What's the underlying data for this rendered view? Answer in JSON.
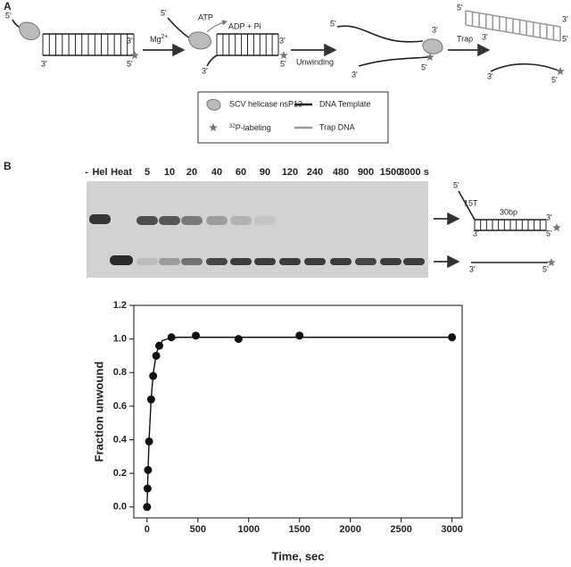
{
  "panel_a": {
    "label": "A",
    "ends": [
      "5'",
      "3'",
      "3'",
      "5'",
      "5'",
      "3'",
      "3'",
      "5'",
      "5'",
      "3'",
      "3'",
      "5'",
      "5'",
      "3'",
      "3'",
      "5'",
      "3'",
      "5'"
    ],
    "mg": {
      "text": "Mg",
      "sup": "2+"
    },
    "atp": "ATP",
    "adp": "ADP + Pi",
    "unwinding": "Unwinding",
    "trap": "Trap",
    "legend": {
      "helicase": "SCV helicase nsP13",
      "template": "DNA Template",
      "label": {
        "sup": "32",
        "text": "P-labeling"
      },
      "trap_dna": "Trap DNA"
    }
  },
  "panel_b": {
    "label": "B",
    "lanes": [
      "-",
      "Hel",
      "Heat",
      "5",
      "10",
      "20",
      "40",
      "60",
      "90",
      "120",
      "240",
      "480",
      "900",
      "1500",
      "3000 s"
    ],
    "ends": [
      "5'",
      "3'",
      "3'",
      "5'",
      "3'",
      "5'"
    ],
    "loop": "15T",
    "duplex": "30bp"
  },
  "chart_data": {
    "type": "scatter",
    "xlabel": "Time, sec",
    "ylabel": "Fraction unwound",
    "xlim": [
      -130,
      3100
    ],
    "xticks": [
      0,
      500,
      1000,
      1500,
      2000,
      2500,
      3000
    ],
    "ylim": [
      -0.065,
      1.2
    ],
    "yticks": [
      {
        "value": 0,
        "label": "0.0"
      },
      {
        "value": 0.2,
        "label": "0.2"
      },
      {
        "value": 0.4,
        "label": "0.4"
      },
      {
        "value": 0.6,
        "label": "0.6"
      },
      {
        "value": 0.8,
        "label": "0.8"
      },
      {
        "value": 1.0,
        "label": "1.0"
      },
      {
        "value": 1.2,
        "label": "1.2"
      }
    ],
    "series": [
      {
        "mode": "markers",
        "color": "#111",
        "x": [
          0,
          5,
          10,
          20,
          40,
          60,
          90,
          120,
          240,
          480,
          900,
          1500,
          3000
        ],
        "values": [
          0.0,
          0.11,
          0.22,
          0.39,
          0.64,
          0.78,
          0.9,
          0.96,
          1.01,
          1.02,
          1.0,
          1.02,
          1.01
        ]
      },
      {
        "mode": "line",
        "color": "#111",
        "x": [
          0,
          10,
          20,
          40,
          60,
          80,
          100,
          150,
          200,
          300,
          3000
        ],
        "values": [
          0.0,
          0.22,
          0.4,
          0.64,
          0.79,
          0.87,
          0.93,
          0.99,
          1.0,
          1.01,
          1.01
        ]
      }
    ]
  }
}
